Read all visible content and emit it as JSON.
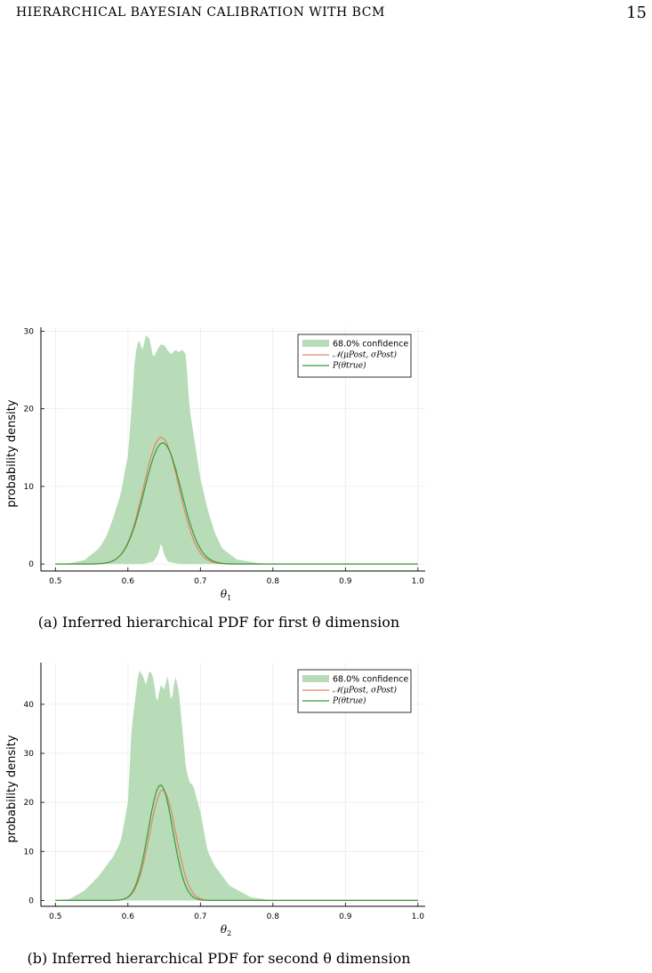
{
  "header": {
    "running_title": "HIERARCHICAL BAYESIAN CALIBRATION WITH BCM",
    "page_number": "15"
  },
  "colors": {
    "band": "#b7dcb7",
    "normal_line": "#e5826b",
    "true_line": "#3a9a3a",
    "axis": "#000000",
    "grid": "#ebebeb"
  },
  "figures": [
    {
      "caption": "(a) Inferred hierarchical PDF for first θ dimension",
      "chart_data": {
        "type": "line",
        "ylabel": "probability density",
        "xlabel": "θ",
        "xlabel_sub": "1",
        "xlim": [
          0.48,
          1.01
        ],
        "ylim": [
          -0.9,
          30.5
        ],
        "xticks": [
          0.5,
          0.6,
          0.7,
          0.8,
          0.9,
          1.0
        ],
        "xtick_labels": [
          "0.5",
          "0.6",
          "0.7",
          "0.8",
          "0.9",
          "1.0"
        ],
        "yticks": [
          0,
          10,
          20,
          30
        ],
        "ytick_labels": [
          "0",
          "10",
          "20",
          "30"
        ],
        "grid": true,
        "legend_position": "top-right",
        "legend": [
          {
            "kind": "band",
            "label": "68.0% confidence"
          },
          {
            "kind": "line",
            "label": "𝒩(μPost, σPost)",
            "key": "normal"
          },
          {
            "kind": "line",
            "label": "P(θtrue)",
            "key": "true"
          }
        ],
        "band_upper": {
          "x": [
            0.5,
            0.52,
            0.54,
            0.56,
            0.57,
            0.58,
            0.59,
            0.6,
            0.605,
            0.61,
            0.615,
            0.62,
            0.625,
            0.63,
            0.635,
            0.64,
            0.645,
            0.65,
            0.655,
            0.66,
            0.665,
            0.67,
            0.675,
            0.68,
            0.685,
            0.69,
            0.7,
            0.71,
            0.72,
            0.73,
            0.75,
            0.78,
            0.82,
            1.0
          ],
          "y": [
            0,
            0.1,
            0.5,
            2,
            3.5,
            6,
            9,
            14,
            20,
            27,
            29,
            27.5,
            29.5,
            29,
            26.5,
            27.5,
            28.3,
            28.2,
            27.5,
            27,
            27.6,
            27.3,
            27.6,
            27,
            20,
            17,
            11,
            7,
            4,
            2,
            0.6,
            0.1,
            0,
            0
          ]
        },
        "band_lower": {
          "x": [
            0.5,
            0.62,
            0.635,
            0.642,
            0.646,
            0.65,
            0.655,
            0.67,
            1.0
          ],
          "y": [
            0,
            0,
            0.3,
            1.3,
            2.8,
            1.2,
            0.3,
            0,
            0
          ]
        },
        "series": [
          {
            "name": "𝒩(μPost, σPost)",
            "key": "normal",
            "dist": "normal",
            "mean": 0.646,
            "sd": 0.0245,
            "peak": 16.3
          },
          {
            "name": "P(θtrue)",
            "key": "true",
            "dist": "normal",
            "mean": 0.648,
            "sd": 0.0255,
            "peak": 15.6
          }
        ]
      }
    },
    {
      "caption": "(b) Inferred hierarchical PDF for second θ dimension",
      "chart_data": {
        "type": "line",
        "ylabel": "probability density",
        "xlabel": "θ",
        "xlabel_sub": "2",
        "xlim": [
          0.48,
          1.01
        ],
        "ylim": [
          -1.2,
          48.5
        ],
        "xticks": [
          0.5,
          0.6,
          0.7,
          0.8,
          0.9,
          1.0
        ],
        "xtick_labels": [
          "0.5",
          "0.6",
          "0.7",
          "0.8",
          "0.9",
          "1.0"
        ],
        "yticks": [
          0,
          10,
          20,
          30,
          40
        ],
        "ytick_labels": [
          "0",
          "10",
          "20",
          "30",
          "40"
        ],
        "grid": true,
        "legend_position": "top-right",
        "legend": [
          {
            "kind": "band",
            "label": "68.0% confidence"
          },
          {
            "kind": "line",
            "label": "𝒩(μPost, σPost)",
            "key": "normal"
          },
          {
            "kind": "line",
            "label": "P(θtrue)",
            "key": "true"
          }
        ],
        "band_upper": {
          "x": [
            0.5,
            0.52,
            0.54,
            0.56,
            0.58,
            0.59,
            0.6,
            0.605,
            0.61,
            0.615,
            0.62,
            0.625,
            0.63,
            0.635,
            0.64,
            0.645,
            0.65,
            0.655,
            0.66,
            0.665,
            0.67,
            0.675,
            0.68,
            0.685,
            0.69,
            0.7,
            0.71,
            0.72,
            0.74,
            0.77,
            0.8,
            1.0
          ],
          "y": [
            0,
            0.3,
            2,
            5,
            9,
            12,
            20,
            35,
            41,
            47,
            46,
            44,
            47,
            45.5,
            40,
            44,
            43,
            46,
            40,
            46,
            43,
            35,
            27,
            24,
            23.5,
            18,
            10,
            7,
            3,
            0.6,
            0,
            0
          ]
        },
        "band_lower": {
          "x": [
            0.5,
            1.0
          ],
          "y": [
            0,
            0
          ]
        },
        "series": [
          {
            "name": "𝒩(μPost, σPost)",
            "key": "normal",
            "dist": "normal",
            "mean": 0.648,
            "sd": 0.018,
            "peak": 22.5
          },
          {
            "name": "P(θtrue)",
            "key": "true",
            "dist": "normal",
            "mean": 0.645,
            "sd": 0.017,
            "peak": 23.5
          }
        ]
      }
    }
  ]
}
